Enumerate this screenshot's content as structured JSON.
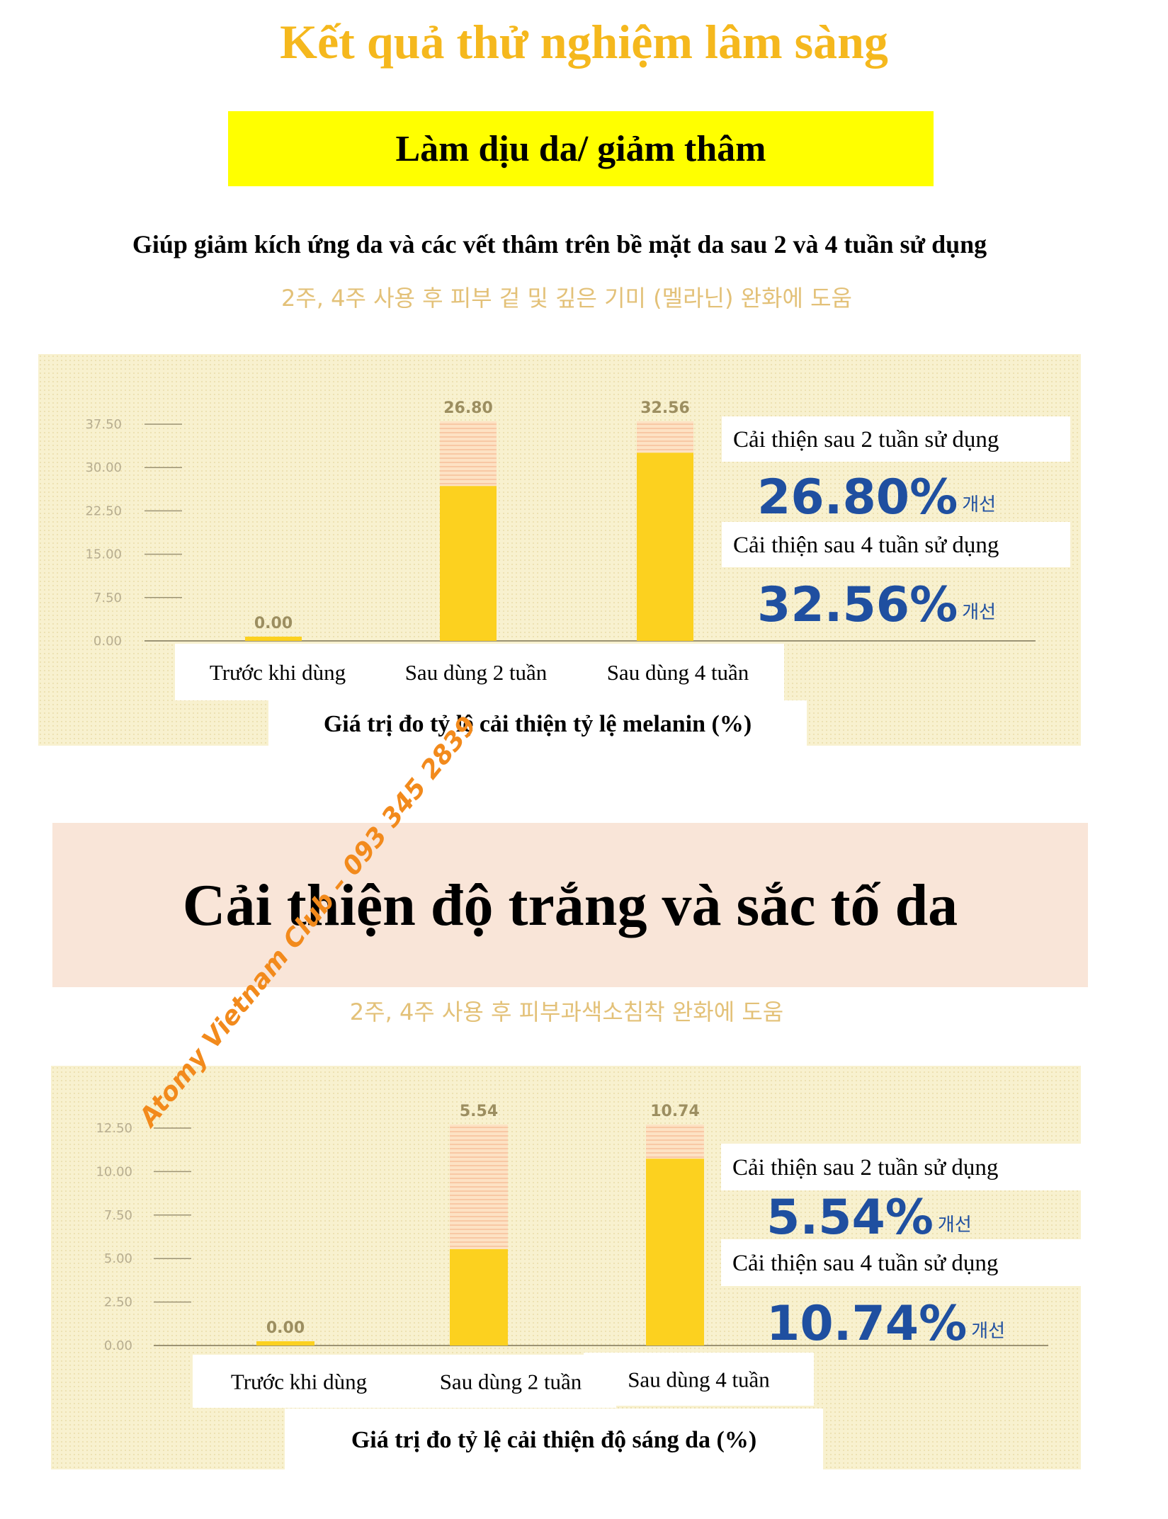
{
  "main_title": "Kết quả thử nghiệm lâm sàng",
  "section1_banner": "Làm dịu da/ giảm thâm",
  "section1_subtitle_vn": "Giúp giảm kích ứng da và các vết thâm trên bề mặt da sau 2 và 4 tuần sử dụng",
  "section1_subtitle_ko": "2주, 4주 사용 후 피부 겉 및 깊은 기미 (멜라닌) 완화에 도움",
  "section2_banner": "Cải thiện độ trắng và sắc tố da",
  "section2_subtitle_ko": "2주, 4주 사용 후 피부과색소침착 완화에 도움",
  "watermark": "Atomy Vietnam Club – 093 345 2839",
  "colors": {
    "title": "#f5b81d",
    "bar": "#fcd11f",
    "value_label": "#9c8e60",
    "percent": "#1f4fa0",
    "banner1": "#ffff00",
    "banner2": "#f9e5d8"
  },
  "chart_data": [
    {
      "type": "bar",
      "categories": [
        "Trước khi dùng",
        "Sau dùng 2 tuần",
        "Sau dùng 4 tuần"
      ],
      "values": [
        0.0,
        26.8,
        32.56
      ],
      "value_labels": [
        "0.00",
        "26.80",
        "32.56"
      ],
      "yticks": [
        "0.00",
        "7.50",
        "15.00",
        "22.50",
        "30.00",
        "37.50"
      ],
      "ylim": [
        0,
        37.5
      ],
      "xlabel": "Giá trị đo tỷ lệ cải thiện tỷ lệ melanin (%)",
      "callouts": [
        {
          "caption": "Cải thiện sau 2 tuần sử dụng",
          "value": "26.80%",
          "suffix": "개선"
        },
        {
          "caption": "Cải thiện sau 4 tuần sử dụng",
          "value": "32.56%",
          "suffix": "개선"
        }
      ]
    },
    {
      "type": "bar",
      "categories": [
        "Trước khi dùng",
        "Sau dùng 2 tuần",
        "Sau dùng 4 tuần"
      ],
      "values": [
        0.0,
        5.54,
        10.74
      ],
      "value_labels": [
        "0.00",
        "5.54",
        "10.74"
      ],
      "yticks": [
        "0.00",
        "2.50",
        "5.00",
        "7.50",
        "10.00",
        "12.50"
      ],
      "ylim": [
        0,
        12.5
      ],
      "xlabel": "Giá trị đo tỷ lệ cải thiện độ sáng da (%)",
      "callouts": [
        {
          "caption": "Cải thiện sau 2 tuần sử dụng",
          "value": "5.54%",
          "suffix": "개선"
        },
        {
          "caption": "Cải thiện sau 4 tuần sử dụng",
          "value": "10.74%",
          "suffix": "개선"
        }
      ]
    }
  ]
}
